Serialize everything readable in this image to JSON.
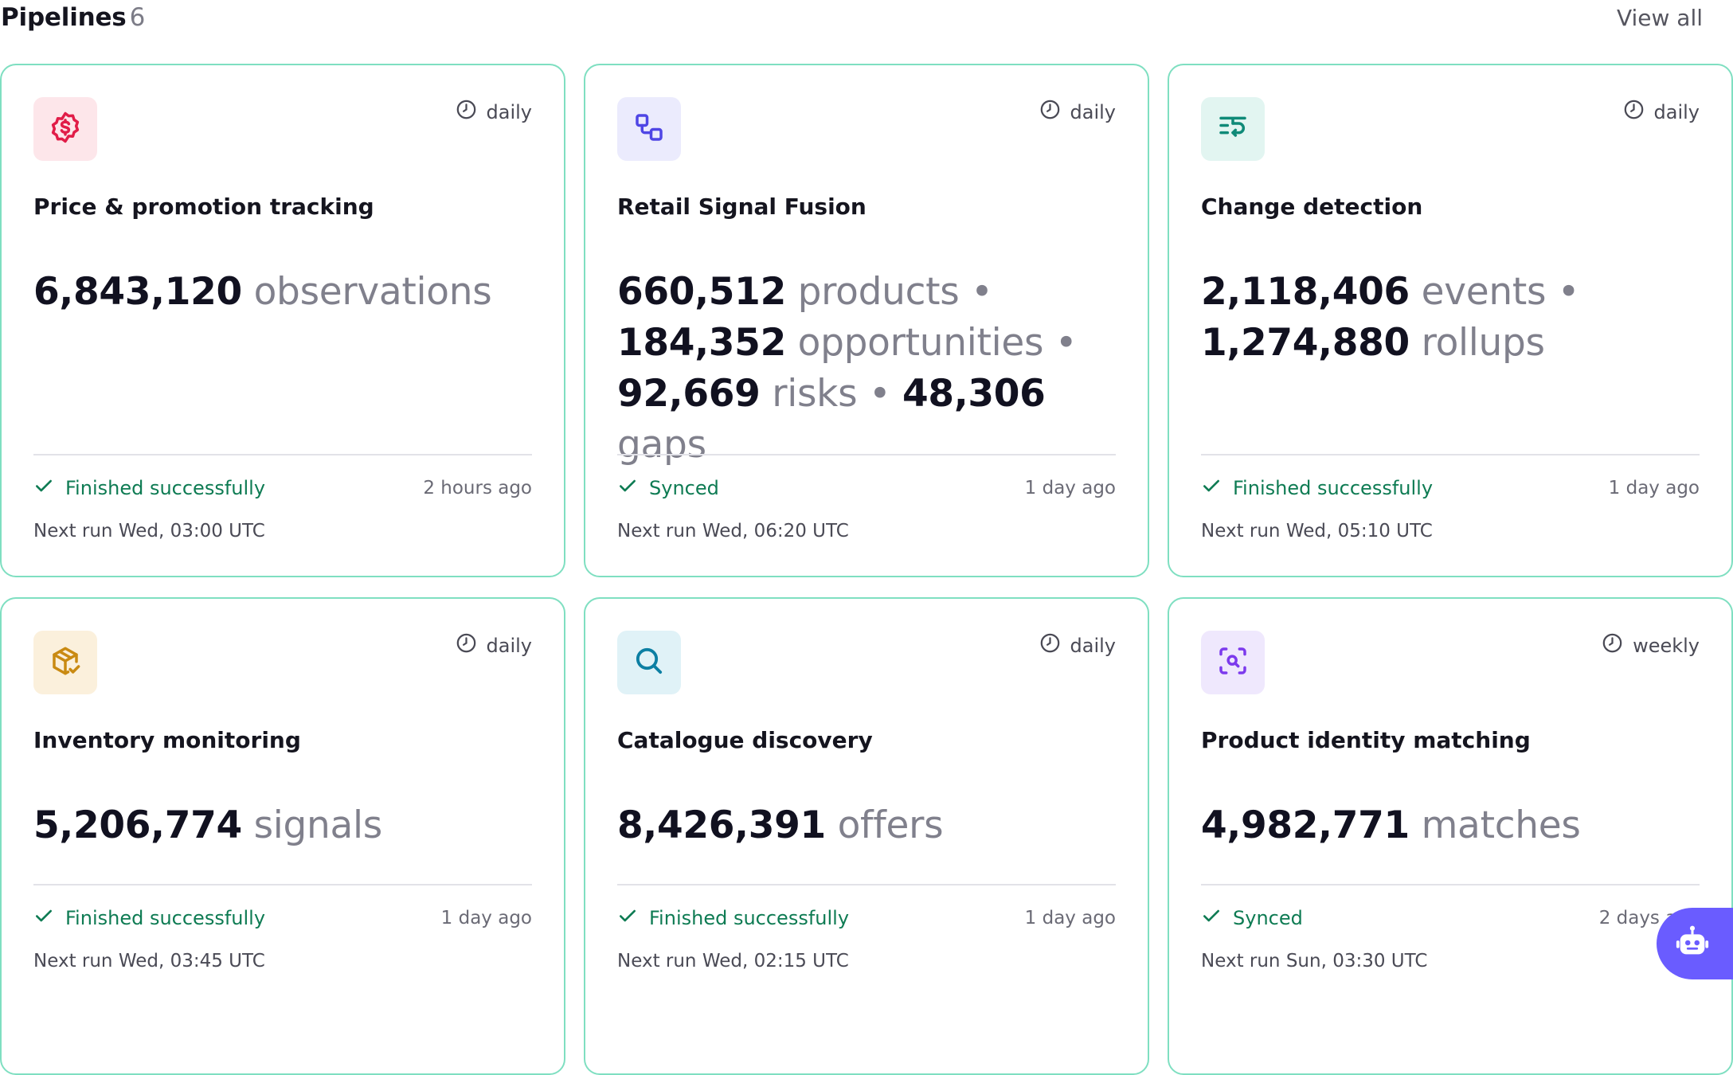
{
  "header": {
    "title": "Pipelines",
    "count": "6",
    "view_all": "View all"
  },
  "colors": {
    "card_border": "#7fdfc1",
    "status_green": "#0e7b53",
    "assistant_purple": "#6a5cff"
  },
  "cards": [
    {
      "icon": "dollar-badge-icon",
      "frequency": "daily",
      "name": "Price & promotion tracking",
      "metrics": [
        {
          "value": "6,843,120",
          "label": "observations"
        }
      ],
      "status": "Finished successfully",
      "ago": "2 hours ago",
      "next_run": "Next run Wed, 03:00 UTC"
    },
    {
      "icon": "linked-squares-icon",
      "frequency": "daily",
      "name": "Retail Signal Fusion",
      "metrics": [
        {
          "value": "660,512",
          "label": "products"
        },
        {
          "value": "184,352",
          "label": "opportunities"
        },
        {
          "value": "92,669",
          "label": "risks"
        },
        {
          "value": "48,306",
          "label": "gaps"
        }
      ],
      "status": "Synced",
      "ago": "1 day ago",
      "next_run": "Next run Wed, 06:20 UTC"
    },
    {
      "icon": "list-change-icon",
      "frequency": "daily",
      "name": "Change detection",
      "metrics": [
        {
          "value": "2,118,406",
          "label": "events"
        },
        {
          "value": "1,274,880",
          "label": "rollups"
        }
      ],
      "status": "Finished successfully",
      "ago": "1 day ago",
      "next_run": "Next run Wed, 05:10 UTC"
    },
    {
      "icon": "package-check-icon",
      "frequency": "daily",
      "name": "Inventory monitoring",
      "metrics": [
        {
          "value": "5,206,774",
          "label": "signals"
        }
      ],
      "status": "Finished successfully",
      "ago": "1 day ago",
      "next_run": "Next run Wed, 03:45 UTC"
    },
    {
      "icon": "search-icon",
      "frequency": "daily",
      "name": "Catalogue discovery",
      "metrics": [
        {
          "value": "8,426,391",
          "label": "offers"
        }
      ],
      "status": "Finished successfully",
      "ago": "1 day ago",
      "next_run": "Next run Wed, 02:15 UTC"
    },
    {
      "icon": "scan-search-icon",
      "frequency": "weekly",
      "name": "Product identity matching",
      "metrics": [
        {
          "value": "4,982,771",
          "label": "matches"
        }
      ],
      "status": "Synced",
      "ago": "2 days ago",
      "next_run": "Next run Sun, 03:30 UTC"
    }
  ],
  "assistant": {
    "icon": "robot-icon"
  }
}
